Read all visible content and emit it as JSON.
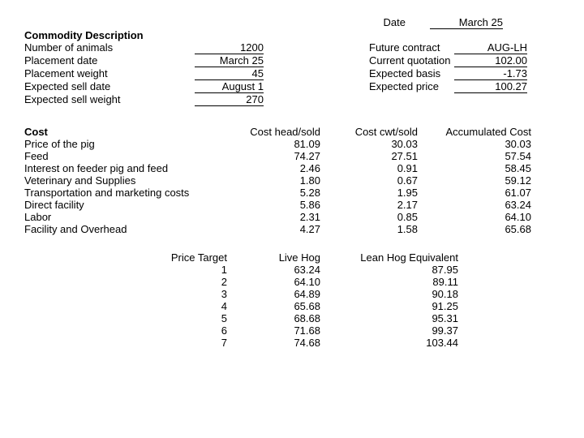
{
  "date_label": "Date",
  "date_value": "March 25",
  "commodity_header": "Commodity Description",
  "commodity_rows": [
    {
      "label": "Number of animals",
      "value": "1200",
      "right_label": "Future contract",
      "right_value": "AUG-LH"
    },
    {
      "label": "Placement date",
      "value": "March 25",
      "right_label": "Current quotation",
      "right_value": "102.00"
    },
    {
      "label": "Placement weight",
      "value": "45",
      "right_label": "Expected basis",
      "right_value": "-1.73"
    },
    {
      "label": "Expected sell date",
      "value": "August 1",
      "right_label": "Expected price",
      "right_value": "100.27"
    },
    {
      "label": "Expected sell weight",
      "value": "270",
      "right_label": "",
      "right_value": ""
    }
  ],
  "cost_header": {
    "label": "Cost",
    "head": "Cost head/sold",
    "cwt": "Cost cwt/sold",
    "acc": "Accumulated Cost"
  },
  "cost_rows": [
    {
      "label": "Price of the pig",
      "head": "81.09",
      "cwt": "30.03",
      "acc": "30.03"
    },
    {
      "label": "Feed",
      "head": "74.27",
      "cwt": "27.51",
      "acc": "57.54"
    },
    {
      "label": "Interest on feeder pig and feed",
      "head": "2.46",
      "cwt": "0.91",
      "acc": "58.45"
    },
    {
      "label": "Veterinary and Supplies",
      "head": "1.80",
      "cwt": "0.67",
      "acc": "59.12"
    },
    {
      "label": "Transportation and marketing costs",
      "head": "5.28",
      "cwt": "1.95",
      "acc": "61.07"
    },
    {
      "label": "Direct facility",
      "head": "5.86",
      "cwt": "2.17",
      "acc": "63.24"
    },
    {
      "label": "Labor",
      "head": "2.31",
      "cwt": "0.85",
      "acc": "64.10"
    },
    {
      "label": "Facility and Overhead",
      "head": "4.27",
      "cwt": "1.58",
      "acc": "65.68"
    }
  ],
  "pt_header": {
    "label": "Price Target",
    "live": "Live Hog",
    "lean": "Lean Hog Equivalent"
  },
  "pt_rows": [
    {
      "n": "1",
      "live": "63.24",
      "lean": "87.95"
    },
    {
      "n": "2",
      "live": "64.10",
      "lean": "89.11"
    },
    {
      "n": "3",
      "live": "64.89",
      "lean": "90.18"
    },
    {
      "n": "4",
      "live": "65.68",
      "lean": "91.25"
    },
    {
      "n": "5",
      "live": "68.68",
      "lean": "95.31"
    },
    {
      "n": "6",
      "live": "71.68",
      "lean": "99.37"
    },
    {
      "n": "7",
      "live": "74.68",
      "lean": "103.44"
    }
  ]
}
